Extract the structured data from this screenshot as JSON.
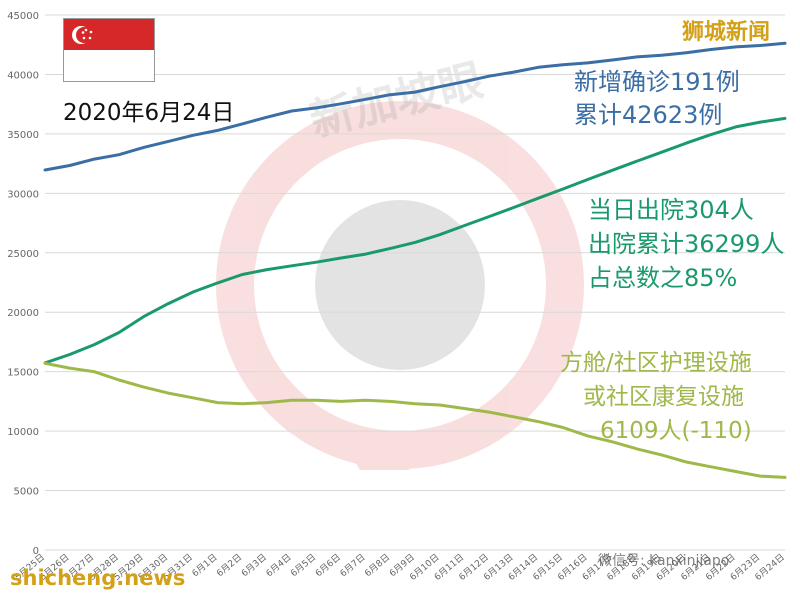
{
  "header": {
    "date": "2020年6月24日",
    "brand": "狮城新闻",
    "watermark_center": "新加坡眼",
    "watermark_bottom_left": "shicheng.news",
    "watermark_bottom_right": "微信号: kanxinjiapo"
  },
  "annotations": {
    "confirmed_line1": "新增确诊191例",
    "confirmed_line2": "累计42623例",
    "discharged_line1": "当日出院304人",
    "discharged_line2": "出院累计36299人",
    "discharged_line3": "占总数之85%",
    "community_line1": "方舱/社区护理设施",
    "community_line2": "或社区康复设施",
    "community_line3": "6109人(-110)"
  },
  "colors": {
    "confirmed": "#3a6ea5",
    "discharged": "#1a9a6b",
    "community": "#9fb84a",
    "grid": "#d9d9d9",
    "axis_text": "#666666",
    "brand": "#d4a017",
    "flag_red": "#d62828"
  },
  "chart_data": {
    "type": "line",
    "ylim": [
      0,
      45000
    ],
    "yticks": [
      0,
      5000,
      10000,
      15000,
      20000,
      25000,
      30000,
      35000,
      40000,
      45000
    ],
    "ytick_labels": [
      "0",
      "5000",
      "10000",
      "15000",
      "20000",
      "25000",
      "30000",
      "35000",
      "40000",
      "45000"
    ],
    "grid": true,
    "categories": [
      "5月25日",
      "5月26日",
      "5月27日",
      "5月28日",
      "5月29日",
      "5月30日",
      "5月31日",
      "6月1日",
      "6月2日",
      "6月3日",
      "6月4日",
      "6月5日",
      "6月6日",
      "6月7日",
      "6月8日",
      "6月9日",
      "6月10日",
      "6月11日",
      "6月12日",
      "6月13日",
      "6月14日",
      "6月15日",
      "6月16日",
      "6月17日",
      "6月18日",
      "6月19日",
      "6月20日",
      "6月21日",
      "6月22日",
      "6月23日",
      "6月24日"
    ],
    "series": [
      {
        "key": "confirmed",
        "values": [
          31960,
          32343,
          32876,
          33249,
          33860,
          34366,
          34884,
          35292,
          35836,
          36405,
          36922,
          37183,
          37527,
          37910,
          38296,
          38514,
          38965,
          39387,
          39850,
          40197,
          40604,
          40818,
          40969,
          41216,
          41473,
          41615,
          41833,
          42095,
          42313,
          42432,
          42623
        ]
      },
      {
        "key": "discharged",
        "values": [
          15738,
          16444,
          17276,
          18294,
          19631,
          20727,
          21699,
          22466,
          23175,
          23582,
          23904,
          24209,
          24559,
          24886,
          25368,
          25877,
          26523,
          27286,
          28040,
          28808,
          29589,
          30366,
          31163,
          31938,
          32712,
          33459,
          34224,
          34942,
          35590,
          35995,
          36299
        ]
      },
      {
        "key": "community",
        "values": [
          15700,
          15300,
          15000,
          14300,
          13700,
          13200,
          12800,
          12400,
          12300,
          12400,
          12600,
          12600,
          12500,
          12600,
          12500,
          12300,
          12200,
          11900,
          11600,
          11200,
          10800,
          10300,
          9600,
          9100,
          8500,
          8000,
          7400,
          7000,
          6600,
          6219,
          6109
        ]
      }
    ]
  }
}
